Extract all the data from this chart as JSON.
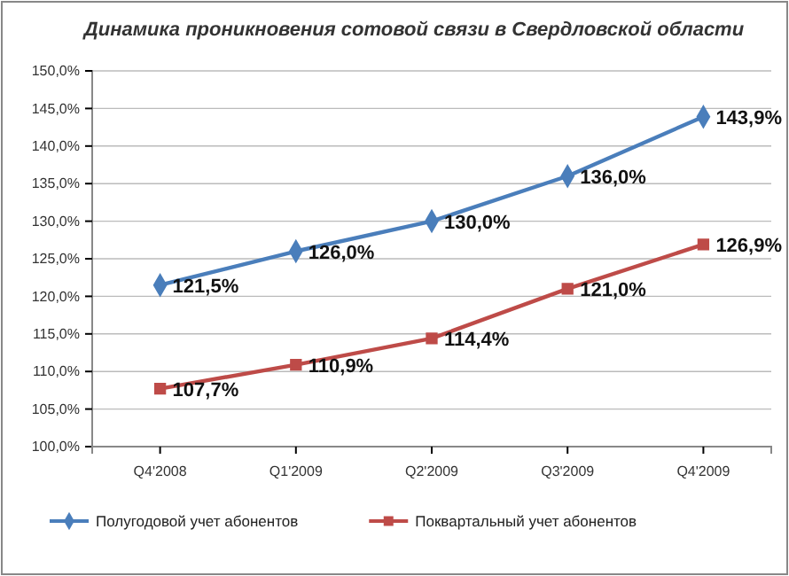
{
  "chart_data": {
    "type": "line",
    "title": "Динамика проникновения сотовой связи в Свердловской области",
    "categories": [
      "Q4'2008",
      "Q1'2009",
      "Q2'2009",
      "Q3'2009",
      "Q4'2009"
    ],
    "series": [
      {
        "name": "Полугодовой учет абонентов",
        "color": "#4a7ebb",
        "marker": "diamond",
        "values": [
          121.5,
          126.0,
          130.0,
          136.0,
          143.9
        ],
        "value_labels": [
          "121,5%",
          "126,0%",
          "130,0%",
          "136,0%",
          "143,9%"
        ]
      },
      {
        "name": "Поквартальный учет абонентов",
        "color": "#be4b48",
        "marker": "square",
        "values": [
          107.7,
          110.9,
          114.4,
          121.0,
          126.9
        ],
        "value_labels": [
          "107,7%",
          "110,9%",
          "114,4%",
          "121,0%",
          "126,9%"
        ]
      }
    ],
    "ylim": [
      100,
      150
    ],
    "yticks": [
      {
        "value": 100,
        "label": "100,0%"
      },
      {
        "value": 105,
        "label": "105,0%"
      },
      {
        "value": 110,
        "label": "110,0%"
      },
      {
        "value": 115,
        "label": "115,0%"
      },
      {
        "value": 120,
        "label": "120,0%"
      },
      {
        "value": 125,
        "label": "125,0%"
      },
      {
        "value": 130,
        "label": "130,0%"
      },
      {
        "value": 135,
        "label": "135,0%"
      },
      {
        "value": 140,
        "label": "140,0%"
      },
      {
        "value": 145,
        "label": "145,0%"
      },
      {
        "value": 150,
        "label": "150,0%"
      }
    ],
    "grid": "y",
    "legend": "bottom",
    "line_style": "solid"
  }
}
